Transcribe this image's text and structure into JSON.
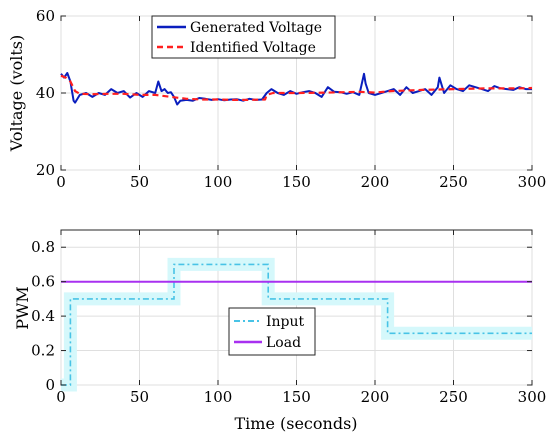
{
  "colors": {
    "generated": "#0a1ebe",
    "identified": "#ff1f1f",
    "input": "#48c3e6",
    "input_band": "#d5f8fb",
    "load": "#a830f0"
  },
  "chart_data": [
    {
      "type": "line",
      "ylabel": "Voltage (volts)",
      "xlim": [
        0,
        300
      ],
      "ylim": [
        20,
        60
      ],
      "xticks": [
        0,
        50,
        100,
        150,
        200,
        250,
        300
      ],
      "yticks": [
        20,
        40,
        60
      ],
      "grid": true,
      "legend_position": "top-center",
      "series": [
        {
          "name": "Generated Voltage",
          "style": "solid",
          "x": [
            0,
            2,
            4,
            6,
            8,
            9,
            12,
            16,
            20,
            24,
            28,
            32,
            36,
            40,
            44,
            48,
            52,
            56,
            60,
            62,
            64,
            66,
            68,
            70,
            72,
            74,
            76,
            80,
            84,
            88,
            92,
            96,
            100,
            104,
            108,
            112,
            116,
            120,
            124,
            128,
            131,
            134,
            138,
            142,
            146,
            150,
            154,
            158,
            162,
            166,
            170,
            174,
            178,
            182,
            186,
            190,
            193,
            194,
            196,
            200,
            204,
            208,
            212,
            216,
            220,
            224,
            228,
            232,
            236,
            240,
            241,
            244,
            248,
            252,
            256,
            260,
            264,
            268,
            272,
            276,
            280,
            284,
            288,
            292,
            296,
            300
          ],
          "y": [
            45,
            44,
            45.2,
            43,
            38,
            37.5,
            39.5,
            40,
            39,
            40,
            39.5,
            41,
            40,
            40.5,
            38.8,
            40,
            39,
            40.5,
            40,
            43,
            40.5,
            41,
            40,
            40.2,
            39,
            37,
            38,
            38.2,
            38,
            38.7,
            38.5,
            38.2,
            38.4,
            38.1,
            38.3,
            38.4,
            38,
            38.5,
            38.2,
            38.3,
            40,
            41,
            40,
            39.5,
            40.5,
            39.8,
            40.2,
            40.5,
            40,
            39,
            41.5,
            40.3,
            40.2,
            39.8,
            40.2,
            39.5,
            45,
            42.5,
            40,
            39.5,
            40,
            40.5,
            41,
            39.5,
            41.5,
            40,
            40.5,
            41,
            39.5,
            41.5,
            44,
            40,
            42,
            41,
            40.5,
            42,
            41.5,
            41,
            40.5,
            41.8,
            41.2,
            41,
            40.8,
            41.5,
            41,
            41
          ]
        },
        {
          "name": "Identified Voltage",
          "style": "dashed",
          "x": [
            0,
            3,
            6,
            9,
            12,
            20,
            30,
            40,
            50,
            60,
            70,
            80,
            90,
            100,
            110,
            120,
            130,
            131,
            135,
            150,
            170,
            190,
            200,
            210,
            230,
            250,
            270,
            290,
            300
          ],
          "y": [
            44.5,
            44,
            43,
            40.5,
            39.8,
            39.7,
            39.8,
            39.8,
            39.5,
            39.5,
            39,
            38.5,
            38.3,
            38.3,
            38.2,
            38.2,
            38.3,
            39.5,
            40,
            40,
            40.1,
            40.3,
            40.1,
            40.5,
            40.8,
            41,
            41.2,
            41.2,
            41.3
          ]
        }
      ]
    },
    {
      "type": "line",
      "xlabel": "Time (seconds)",
      "ylabel": "PWM",
      "xlim": [
        0,
        300
      ],
      "ylim": [
        0,
        0.9
      ],
      "xticks": [
        0,
        50,
        100,
        150,
        200,
        250,
        300
      ],
      "yticks": [
        0,
        0.2,
        0.4,
        0.6,
        0.8
      ],
      "grid": true,
      "legend_position": "center",
      "series": [
        {
          "name": "Input",
          "style": "dash-dot",
          "x": [
            0,
            6,
            6,
            72,
            72,
            132,
            132,
            208,
            208,
            300
          ],
          "y": [
            0,
            0,
            0.5,
            0.5,
            0.7,
            0.7,
            0.5,
            0.5,
            0.3,
            0.3
          ]
        },
        {
          "name": "Load",
          "style": "solid",
          "x": [
            0,
            300
          ],
          "y": [
            0.6,
            0.6
          ]
        }
      ]
    }
  ]
}
